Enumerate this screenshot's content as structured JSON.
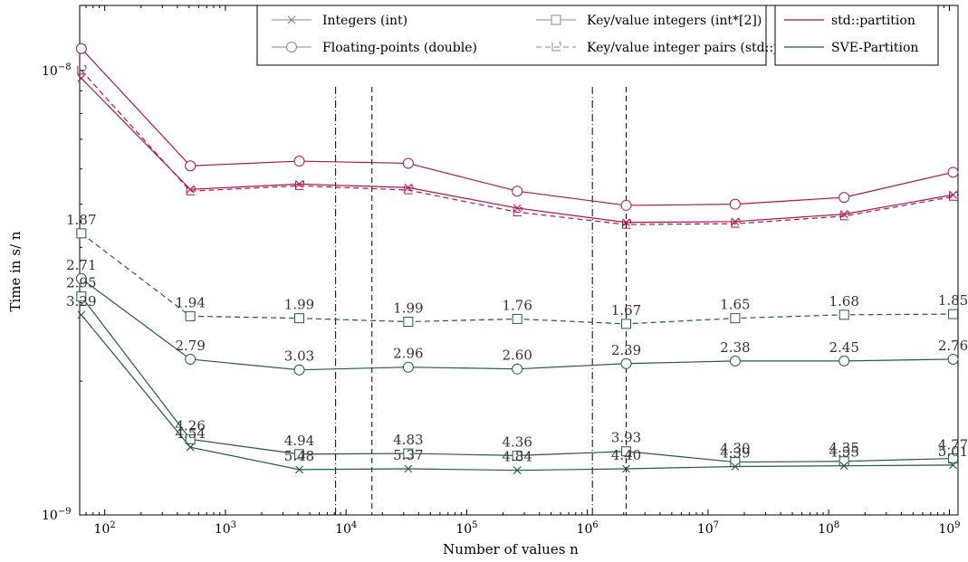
{
  "chart_data": {
    "type": "line",
    "x_scale": "log",
    "y_scale": "log",
    "xlabel": "Number of values n",
    "ylabel": "Time in s/ n",
    "xlim": [
      62,
      1180000000
    ],
    "ylim": [
      1e-09,
      1.4e-08
    ],
    "y_tick_labels": [
      "10^{-9}",
      "10^{-8}"
    ],
    "x_tick_labels": [
      "10^2",
      "10^3",
      "10^4",
      "10^5",
      "10^6",
      "10^7",
      "10^8",
      "10^9"
    ],
    "x": [
      64,
      512,
      4096,
      32768,
      262144,
      2097152,
      16777216,
      134217728,
      1073741824
    ],
    "colors": {
      "std_partition": "#b5124a",
      "sve_partition": "#1e5e3a",
      "legend_gray": "#888888"
    },
    "vertical_lines": [
      {
        "x": 8192,
        "style": "dashdot"
      },
      {
        "x": 16384,
        "style": "dashed"
      },
      {
        "x": 1100000,
        "style": "dashdot"
      },
      {
        "x": 2097152,
        "style": "dashed"
      }
    ],
    "legend_types": [
      {
        "label": "Integers (int)",
        "marker": "x",
        "line": "solid"
      },
      {
        "label": "Key/value integers (int*[2])",
        "marker": "square",
        "line": "solid"
      },
      {
        "label": "Floating-points (double)",
        "marker": "circle",
        "line": "solid"
      },
      {
        "label": "Key/value integer pairs (std::pair)",
        "marker": "L",
        "line": "dashed"
      }
    ],
    "legend_impls": [
      {
        "label": "std::partition",
        "color_key": "std_partition"
      },
      {
        "label": "SVE-Partition",
        "color_key": "sve_partition"
      }
    ],
    "series": [
      {
        "name": "std::partition, Integers (int)",
        "impl": "std_partition",
        "marker": "x",
        "dash": "solid",
        "values": [
          9.6e-09,
          5.4e-09,
          5.55e-09,
          5.45e-09,
          4.9e-09,
          4.55e-09,
          4.57e-09,
          4.75e-09,
          5.25e-09
        ]
      },
      {
        "name": "std::partition, Floating-points (double)",
        "impl": "std_partition",
        "marker": "circle",
        "dash": "solid",
        "values": [
          1.12e-08,
          6.1e-09,
          6.25e-09,
          6.18e-09,
          5.35e-09,
          4.97e-09,
          5e-09,
          5.18e-09,
          5.9e-09
        ]
      },
      {
        "name": "std::partition, Key/value integer pairs (std::pair)",
        "impl": "std_partition",
        "marker": "L",
        "dash": "dashed",
        "values": [
          1e-08,
          5.35e-09,
          5.5e-09,
          5.38e-09,
          4.8e-09,
          4.5e-09,
          4.52e-09,
          4.7e-09,
          5.2e-09
        ]
      },
      {
        "name": "SVE-Partition, Key/value integers (int*[2])",
        "impl": "sve_partition",
        "marker": "square",
        "dash": "dashed",
        "values": [
          4.3e-09,
          2.8e-09,
          2.77e-09,
          2.72e-09,
          2.76e-09,
          2.69e-09,
          2.77e-09,
          2.82e-09,
          2.83e-09
        ],
        "labels": [
          "1.87",
          "1.94",
          "1.99",
          "1.99",
          "1.76",
          "1.67",
          "1.65",
          "1.68",
          "1.85"
        ]
      },
      {
        "name": "SVE-Partition, Floating-points (double)",
        "impl": "sve_partition",
        "marker": "circle",
        "dash": "solid",
        "values": [
          3.4e-09,
          2.24e-09,
          2.12e-09,
          2.15e-09,
          2.13e-09,
          2.19e-09,
          2.22e-09,
          2.22e-09,
          2.24e-09
        ],
        "labels": [
          "2.71",
          "2.79",
          "3.03",
          "2.96",
          "2.60",
          "2.39",
          "2.38",
          "2.45",
          "2.76"
        ]
      },
      {
        "name": "SVE-Partition, Key/value integers (int*[2]) small",
        "impl": "sve_partition",
        "marker": "square",
        "dash": "solid",
        "values": [
          3.1e-09,
          1.48e-09,
          1.37e-09,
          1.375e-09,
          1.36e-09,
          1.39e-09,
          1.315e-09,
          1.32e-09,
          1.34e-09
        ],
        "labels": [
          "2.95",
          "4.26",
          "4.94",
          "4.83",
          "4.36",
          "3.93",
          "4.30",
          "4.35",
          "4.77"
        ]
      },
      {
        "name": "SVE-Partition, Integers (int)",
        "impl": "sve_partition",
        "marker": "x",
        "dash": "solid",
        "values": [
          2.82e-09,
          1.42e-09,
          1.265e-09,
          1.27e-09,
          1.26e-09,
          1.27e-09,
          1.285e-09,
          1.29e-09,
          1.295e-09
        ],
        "labels": [
          "3.29",
          "4.54",
          "5.48",
          "5.37",
          "4.84",
          "4.40",
          "4.39",
          "4.55",
          "5.01"
        ]
      }
    ]
  }
}
